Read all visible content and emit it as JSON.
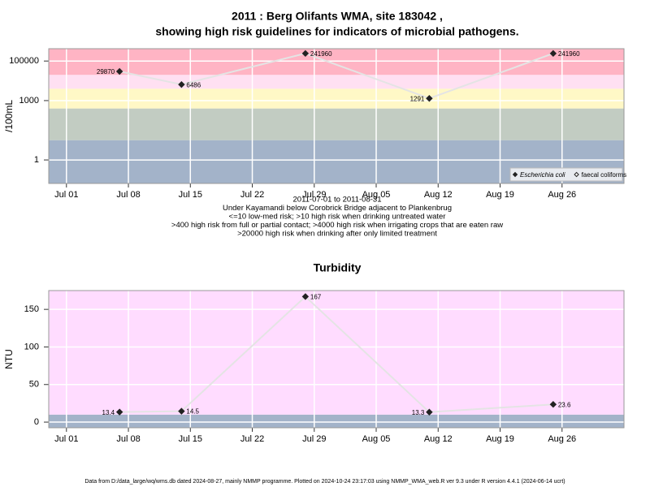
{
  "chart_data": [
    {
      "type": "line",
      "title": [
        "2011 : Berg Olifants WMA, site 183042 ,",
        "showing high risk guidelines for indicators of microbial pathogens."
      ],
      "y_label": "/100mL",
      "log_y": true,
      "grid": true,
      "legend": "lower right",
      "x": [
        "2011-07-07",
        "2011-07-14",
        "2011-07-28",
        "2011-08-11",
        "2011-08-25"
      ],
      "series": [
        {
          "name": "Escherichia coli",
          "color": "#222222",
          "marker": "filled",
          "values": [
            29870,
            6486,
            241960,
            1291,
            241960
          ]
        },
        {
          "name": "faecal coliforms",
          "color": "#222222",
          "marker": "open",
          "values": [
            null,
            null,
            null,
            null,
            null
          ]
        }
      ],
      "line_color": "#e4e4e4",
      "bands": [
        {
          "to": 10,
          "color": "#a3b3c9"
        },
        {
          "from": 10,
          "to": 400,
          "color": "#c2ccc2"
        },
        {
          "from": 400,
          "to": 4000,
          "color": "#fff8c6"
        },
        {
          "from": 4000,
          "to": 20000,
          "color": "#ffe0f2"
        },
        {
          "from": 20000,
          "color": "#ffb4c4"
        }
      ],
      "xlim": [
        "2011-06-29",
        "2011-09-02"
      ],
      "xticks": [
        {
          "value": "2011-07-01",
          "label": "Jul 01"
        },
        {
          "value": "2011-07-08",
          "label": "Jul 08"
        },
        {
          "value": "2011-07-15",
          "label": "Jul 15"
        },
        {
          "value": "2011-07-22",
          "label": "Jul 22"
        },
        {
          "value": "2011-07-29",
          "label": "Jul 29"
        },
        {
          "value": "2011-08-05",
          "label": "Aug 05"
        },
        {
          "value": "2011-08-12",
          "label": "Aug 12"
        },
        {
          "value": "2011-08-19",
          "label": "Aug 19"
        },
        {
          "value": "2011-08-26",
          "label": "Aug 26"
        }
      ],
      "ylim": [
        0.065,
        420000
      ],
      "yticks": [
        1,
        1000,
        100000
      ],
      "notes": [
        "2011-07-01 to 2011-08-31",
        "Under Kayamandi below Corobrick Bridge adjacent to Plankenbrug",
        "<=10 low-med risk; >10 high risk when drinking untreated water",
        ">400 high risk from full or partial contact; >4000 high risk when irrigating crops that are eaten raw",
        ">20000 high risk when drinking after only limited treatment"
      ]
    },
    {
      "type": "line",
      "title": [
        "Turbidity"
      ],
      "y_label": "NTU",
      "log_y": false,
      "grid": true,
      "x": [
        "2011-07-07",
        "2011-07-14",
        "2011-07-28",
        "2011-08-11",
        "2011-08-25"
      ],
      "series": [
        {
          "color": "#222222",
          "marker": "filled",
          "values": [
            13.4,
            14.5,
            167,
            13.3,
            23.6
          ]
        }
      ],
      "line_color": "#e4e4e4",
      "bands": [
        {
          "to": 10,
          "color": "#a3b3c9"
        },
        {
          "from": 10,
          "color": "#ffdcff"
        }
      ],
      "xlim": [
        "2011-06-29",
        "2011-09-02"
      ],
      "xticks": [
        {
          "value": "2011-07-01",
          "label": "Jul 01"
        },
        {
          "value": "2011-07-08",
          "label": "Jul 08"
        },
        {
          "value": "2011-07-15",
          "label": "Jul 15"
        },
        {
          "value": "2011-07-22",
          "label": "Jul 22"
        },
        {
          "value": "2011-07-29",
          "label": "Jul 29"
        },
        {
          "value": "2011-08-05",
          "label": "Aug 05"
        },
        {
          "value": "2011-08-12",
          "label": "Aug 12"
        },
        {
          "value": "2011-08-19",
          "label": "Aug 19"
        },
        {
          "value": "2011-08-26",
          "label": "Aug 26"
        }
      ],
      "ylim": [
        -7.5,
        175
      ],
      "yticks": [
        0,
        50,
        100,
        150
      ]
    }
  ],
  "footer": "Data from D:/data_large/wq/wms.db dated 2024-08-27, mainly NMMP programme. Plotted on 2024-10-24 23:17:03 using NMMP_WMA_web.R ver 9.3 under R version 4.4.1 (2024-06-14 ucrt)"
}
